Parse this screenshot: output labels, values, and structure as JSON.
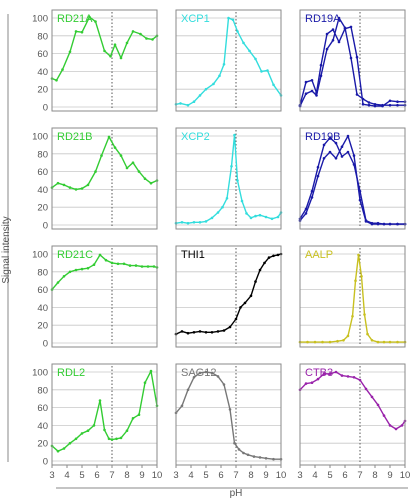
{
  "chart_data": {
    "type": "line",
    "grid": "horizontal",
    "xlabel": "pH",
    "ylabel": "Signal intensity",
    "xlim": [
      3,
      10
    ],
    "ylim": [
      0,
      100
    ],
    "reference_line_x": 7,
    "xticks": [
      3,
      4,
      5,
      6,
      7,
      8,
      9,
      10
    ],
    "yticks": [
      0,
      20,
      40,
      60,
      80,
      100
    ],
    "panels": [
      {
        "title": "RD21A",
        "color": "#33cc33",
        "series": [
          {
            "x": [
              3,
              3.3,
              3.7,
              4.2,
              4.6,
              5.0,
              5.5,
              5.9,
              6.5,
              6.9,
              7.2,
              7.6,
              8.0,
              8.4,
              8.9,
              9.3,
              9.7,
              10.0
            ],
            "y": [
              32,
              30,
              42,
              62,
              85,
              84,
              101,
              96,
              63,
              57,
              70,
              55,
              72,
              85,
              82,
              77,
              76,
              80
            ]
          }
        ]
      },
      {
        "title": "XCP1",
        "color": "#33dddd",
        "series": [
          {
            "x": [
              3,
              3.3,
              3.8,
              4.2,
              4.6,
              5.0,
              5.5,
              5.9,
              6.2,
              6.5,
              6.8,
              7.1,
              7.5,
              7.9,
              8.3,
              8.7,
              9.1,
              9.5,
              10.0
            ],
            "y": [
              3,
              4,
              2,
              6,
              13,
              20,
              26,
              35,
              48,
              100,
              98,
              85,
              72,
              63,
              54,
              40,
              41,
              25,
              13
            ]
          }
        ]
      },
      {
        "title": "RD19A",
        "color": "#1a1aa8",
        "series": [
          {
            "x": [
              3,
              3.4,
              3.8,
              4.1,
              4.4,
              4.8,
              5.2,
              5.6,
              6.0,
              6.4,
              6.8,
              7.2,
              7.6,
              8.0,
              8.5,
              9.0,
              9.5,
              10.0
            ],
            "y": [
              2,
              28,
              30,
              16,
              47,
              82,
              87,
              73,
              88,
              90,
              56,
              3,
              2,
              1,
              1,
              7,
              6,
              6
            ]
          },
          {
            "x": [
              3,
              3.4,
              3.8,
              4.1,
              4.4,
              4.8,
              5.2,
              5.6,
              6.0,
              6.4,
              6.8,
              7.2,
              7.6,
              8.0,
              8.5,
              9.0,
              9.5,
              10.0
            ],
            "y": [
              1,
              15,
              18,
              13,
              35,
              65,
              75,
              100,
              89,
              55,
              14,
              9,
              5,
              3,
              2,
              2,
              2,
              2
            ]
          }
        ]
      },
      {
        "title": "RD21B",
        "color": "#33cc33",
        "series": [
          {
            "x": [
              3,
              3.4,
              3.8,
              4.2,
              4.6,
              5.0,
              5.4,
              5.9,
              6.3,
              6.8,
              7.2,
              7.6,
              8.0,
              8.4,
              8.8,
              9.2,
              9.6,
              10.0
            ],
            "y": [
              42,
              47,
              45,
              42,
              40,
              41,
              45,
              60,
              78,
              99,
              87,
              78,
              64,
              70,
              60,
              52,
              47,
              50
            ]
          }
        ]
      },
      {
        "title": "XCP2",
        "color": "#33dddd",
        "series": [
          {
            "x": [
              3,
              3.4,
              3.8,
              4.2,
              4.6,
              5.0,
              5.4,
              5.8,
              6.1,
              6.4,
              6.7,
              6.9,
              7.1,
              7.4,
              7.7,
              8.0,
              8.3,
              8.6,
              9.0,
              9.4,
              9.8,
              10.0
            ],
            "y": [
              2,
              3,
              2,
              3,
              3,
              4,
              8,
              14,
              20,
              30,
              66,
              101,
              50,
              27,
              13,
              8,
              10,
              11,
              9,
              7,
              9,
              14
            ]
          }
        ]
      },
      {
        "title": "RD19B",
        "color": "#1a1aa8",
        "series": [
          {
            "x": [
              3,
              3.4,
              3.8,
              4.2,
              4.6,
              5.0,
              5.4,
              5.8,
              6.2,
              6.6,
              7.0,
              7.4,
              7.8,
              8.2,
              8.6,
              9.0,
              9.5,
              10.0
            ],
            "y": [
              7,
              18,
              38,
              65,
              90,
              98,
              92,
              77,
              82,
              68,
              38,
              5,
              2,
              2,
              1,
              1,
              1,
              1
            ]
          },
          {
            "x": [
              3,
              3.4,
              3.8,
              4.2,
              4.6,
              5.0,
              5.4,
              5.8,
              6.2,
              6.6,
              7.0,
              7.4,
              7.8,
              8.2,
              8.6,
              9.0,
              9.5,
              10.0
            ],
            "y": [
              5,
              13,
              31,
              55,
              75,
              82,
              75,
              88,
              100,
              78,
              28,
              4,
              1,
              1,
              1,
              1,
              1,
              1
            ]
          }
        ]
      },
      {
        "title": "RD21C",
        "color": "#33cc33",
        "series": [
          {
            "x": [
              3,
              3.4,
              3.8,
              4.2,
              4.6,
              5.0,
              5.4,
              5.8,
              6.2,
              6.6,
              7.0,
              7.4,
              7.8,
              8.2,
              8.6,
              9.0,
              9.4,
              9.8,
              10.0
            ],
            "y": [
              60,
              68,
              75,
              80,
              82,
              83,
              84,
              88,
              99,
              93,
              90,
              89,
              89,
              87,
              87,
              86,
              86,
              86,
              85
            ]
          }
        ]
      },
      {
        "title": "THI1",
        "color": "#000000",
        "series": [
          {
            "x": [
              3,
              3.4,
              3.8,
              4.2,
              4.6,
              5.0,
              5.4,
              5.8,
              6.2,
              6.6,
              7.0,
              7.3,
              7.6,
              8.0,
              8.3,
              8.6,
              8.9,
              9.2,
              9.5,
              9.8,
              10.0
            ],
            "y": [
              10,
              13,
              11,
              12,
              13,
              12,
              12,
              13,
              14,
              18,
              27,
              40,
              45,
              53,
              69,
              82,
              90,
              96,
              98,
              99,
              100
            ]
          }
        ]
      },
      {
        "title": "AALP",
        "color": "#c8c020",
        "series": [
          {
            "x": [
              3,
              3.5,
              4.0,
              4.5,
              5.0,
              5.5,
              5.9,
              6.2,
              6.5,
              6.7,
              6.9,
              7.1,
              7.3,
              7.5,
              7.8,
              8.2,
              8.6,
              9.0,
              9.5,
              10.0
            ],
            "y": [
              1,
              1,
              1,
              1,
              1,
              2,
              3,
              8,
              30,
              70,
              99,
              75,
              32,
              10,
              3,
              1,
              1,
              1,
              1,
              1
            ]
          }
        ]
      },
      {
        "title": "RDL2",
        "color": "#33cc33",
        "series": [
          {
            "x": [
              3,
              3.4,
              3.8,
              4.2,
              4.6,
              5.0,
              5.4,
              5.8,
              6.2,
              6.5,
              6.8,
              7.0,
              7.3,
              7.6,
              8.0,
              8.4,
              8.8,
              9.2,
              9.6,
              10.0
            ],
            "y": [
              17,
              11,
              14,
              20,
              25,
              31,
              34,
              40,
              68,
              35,
              25,
              24,
              25,
              26,
              34,
              48,
              52,
              88,
              101,
              62
            ]
          }
        ]
      },
      {
        "title": "SAG12",
        "color": "#777777",
        "series": [
          {
            "x": [
              3,
              3.4,
              3.8,
              4.2,
              4.6,
              5.0,
              5.4,
              5.8,
              6.2,
              6.6,
              6.9,
              7.2,
              7.5,
              7.8,
              8.2,
              8.6,
              9.0,
              9.5,
              10.0
            ],
            "y": [
              54,
              62,
              80,
              94,
              99,
              100,
              99,
              95,
              86,
              58,
              20,
              13,
              9,
              7,
              5,
              4,
              3,
              2,
              2
            ]
          }
        ]
      },
      {
        "title": "CTB3",
        "color": "#9922aa",
        "series": [
          {
            "x": [
              3,
              3.4,
              3.8,
              4.2,
              4.6,
              5.0,
              5.4,
              5.8,
              6.2,
              6.6,
              7.0,
              7.4,
              7.8,
              8.2,
              8.6,
              9.0,
              9.4,
              9.8,
              10.0
            ],
            "y": [
              80,
              87,
              88,
              92,
              98,
              98,
              100,
              96,
              95,
              94,
              91,
              81,
              72,
              63,
              51,
              40,
              36,
              40,
              45
            ]
          }
        ]
      }
    ]
  }
}
